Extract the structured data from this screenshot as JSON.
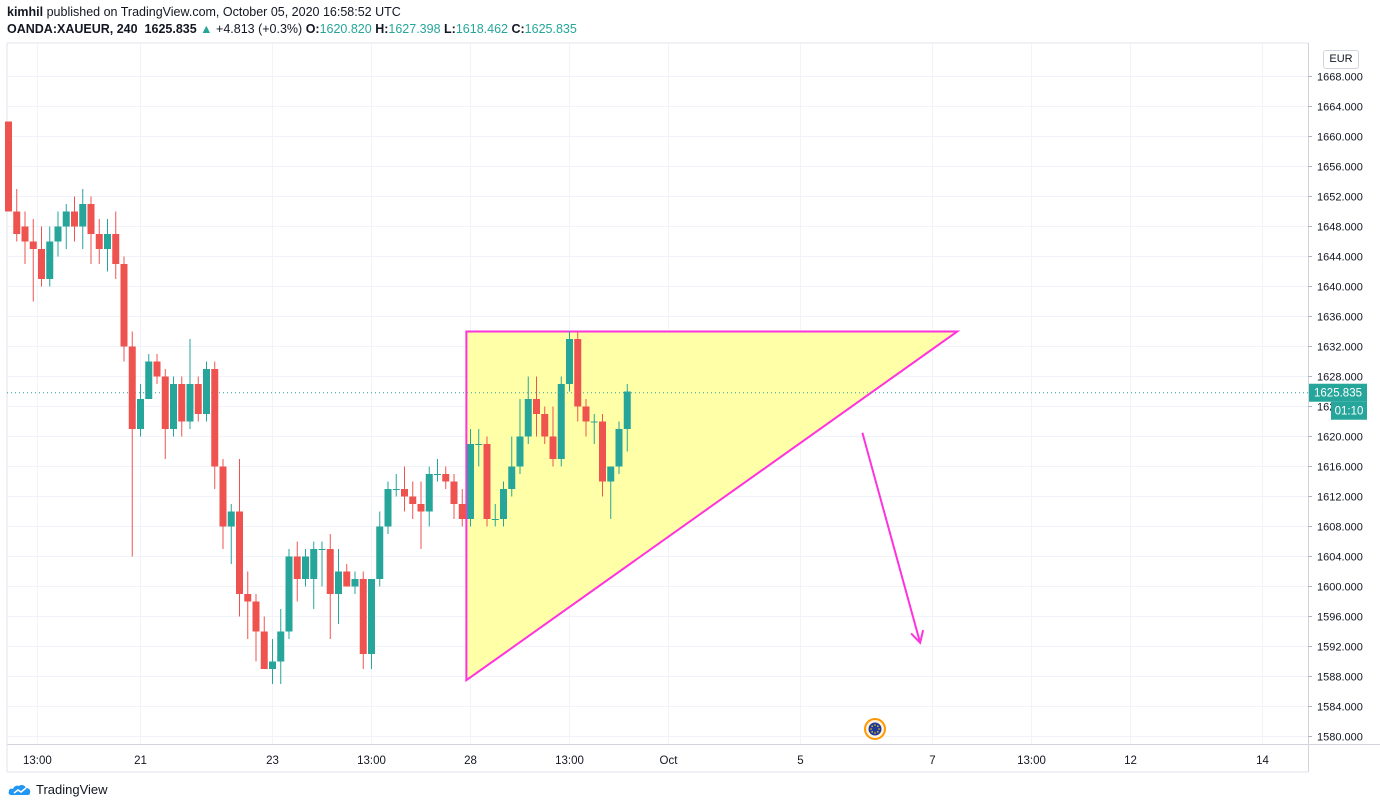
{
  "header": {
    "author": "kimhil",
    "published_text": "published on TradingView.com, October 05, 2020 16:58:52 UTC",
    "symbol": "OANDA:XAUEUR, 240",
    "last": "1625.835",
    "change": "+4.813 (+0.3%)",
    "o_label": "O:",
    "o_value": "1620.820",
    "h_label": "H:",
    "h_value": "1627.398",
    "l_label": "L:",
    "l_value": "1618.462",
    "c_label": "C:",
    "c_value": "1625.835"
  },
  "currency": "EUR",
  "price_badge": "1625.835",
  "countdown": "01:10",
  "footer_brand": "TradingView",
  "colors": {
    "up": "#26a69a",
    "down": "#ef5350",
    "pattern_fill": "#ffff99",
    "pattern_line": "#ff33dd",
    "dotted": "#26a69a"
  },
  "chart_data": {
    "type": "candlestick",
    "ylim": [
      1578,
      1672
    ],
    "y_ticks": [
      1580,
      1584,
      1588,
      1592,
      1596,
      1600,
      1604,
      1608,
      1612,
      1616,
      1620,
      1624,
      1628,
      1632,
      1636,
      1640,
      1644,
      1648,
      1652,
      1656,
      1660,
      1664,
      1668
    ],
    "x_ticks": [
      {
        "bar": 3.5,
        "label": "13:00"
      },
      {
        "bar": 16,
        "label": "21"
      },
      {
        "bar": 32,
        "label": "23"
      },
      {
        "bar": 44,
        "label": "13:00"
      },
      {
        "bar": 56,
        "label": "28"
      },
      {
        "bar": 68,
        "label": "13:00"
      },
      {
        "bar": 80,
        "label": "Oct"
      },
      {
        "bar": 96,
        "label": "5"
      },
      {
        "bar": 112,
        "label": "7"
      },
      {
        "bar": 124,
        "label": "13:00"
      },
      {
        "bar": 136,
        "label": "12"
      },
      {
        "bar": 152,
        "label": "14"
      }
    ],
    "last_price": 1625.835,
    "candles": [
      {
        "o": 1662,
        "h": 1662,
        "l": 1650,
        "c": 1650
      },
      {
        "o": 1650,
        "h": 1653,
        "l": 1646,
        "c": 1647
      },
      {
        "o": 1648,
        "h": 1650,
        "l": 1643,
        "c": 1646
      },
      {
        "o": 1646,
        "h": 1649,
        "l": 1638,
        "c": 1645
      },
      {
        "o": 1645,
        "h": 1648,
        "l": 1640,
        "c": 1641
      },
      {
        "o": 1641,
        "h": 1648,
        "l": 1640,
        "c": 1646
      },
      {
        "o": 1646,
        "h": 1650,
        "l": 1644,
        "c": 1648
      },
      {
        "o": 1648,
        "h": 1651,
        "l": 1645,
        "c": 1650
      },
      {
        "o": 1650,
        "h": 1652,
        "l": 1646,
        "c": 1648
      },
      {
        "o": 1648,
        "h": 1653,
        "l": 1645,
        "c": 1651
      },
      {
        "o": 1651,
        "h": 1652,
        "l": 1643,
        "c": 1647
      },
      {
        "o": 1647,
        "h": 1649,
        "l": 1643,
        "c": 1645
      },
      {
        "o": 1645,
        "h": 1649,
        "l": 1642,
        "c": 1647
      },
      {
        "o": 1647,
        "h": 1650,
        "l": 1641,
        "c": 1643
      },
      {
        "o": 1643,
        "h": 1644,
        "l": 1630,
        "c": 1632
      },
      {
        "o": 1632,
        "h": 1634,
        "l": 1604,
        "c": 1621
      },
      {
        "o": 1621,
        "h": 1627,
        "l": 1620,
        "c": 1625
      },
      {
        "o": 1625,
        "h": 1631,
        "l": 1625,
        "c": 1630
      },
      {
        "o": 1630,
        "h": 1631,
        "l": 1627,
        "c": 1628
      },
      {
        "o": 1628,
        "h": 1629,
        "l": 1617,
        "c": 1621
      },
      {
        "o": 1621,
        "h": 1628,
        "l": 1620,
        "c": 1627
      },
      {
        "o": 1627,
        "h": 1628,
        "l": 1620,
        "c": 1622
      },
      {
        "o": 1622,
        "h": 1633,
        "l": 1621,
        "c": 1627
      },
      {
        "o": 1627,
        "h": 1628,
        "l": 1622,
        "c": 1623
      },
      {
        "o": 1623,
        "h": 1630,
        "l": 1622,
        "c": 1629
      },
      {
        "o": 1629,
        "h": 1630,
        "l": 1613,
        "c": 1616
      },
      {
        "o": 1616,
        "h": 1617,
        "l": 1605,
        "c": 1608
      },
      {
        "o": 1608,
        "h": 1611,
        "l": 1603,
        "c": 1610
      },
      {
        "o": 1610,
        "h": 1617,
        "l": 1596,
        "c": 1599
      },
      {
        "o": 1599,
        "h": 1602,
        "l": 1593,
        "c": 1598
      },
      {
        "o": 1598,
        "h": 1599,
        "l": 1590,
        "c": 1594
      },
      {
        "o": 1594,
        "h": 1596,
        "l": 1589,
        "c": 1589
      },
      {
        "o": 1589,
        "h": 1593,
        "l": 1587,
        "c": 1590
      },
      {
        "o": 1590,
        "h": 1597,
        "l": 1587,
        "c": 1594
      },
      {
        "o": 1594,
        "h": 1605,
        "l": 1593,
        "c": 1604
      },
      {
        "o": 1604,
        "h": 1606,
        "l": 1598,
        "c": 1601
      },
      {
        "o": 1601,
        "h": 1605,
        "l": 1600,
        "c": 1604
      },
      {
        "o": 1601,
        "h": 1606,
        "l": 1597,
        "c": 1605
      },
      {
        "o": 1605,
        "h": 1606,
        "l": 1600,
        "c": 1605
      },
      {
        "o": 1605,
        "h": 1607,
        "l": 1593,
        "c": 1599
      },
      {
        "o": 1599,
        "h": 1605,
        "l": 1595,
        "c": 1602
      },
      {
        "o": 1602,
        "h": 1603,
        "l": 1600,
        "c": 1600
      },
      {
        "o": 1600,
        "h": 1602,
        "l": 1599,
        "c": 1601
      },
      {
        "o": 1601,
        "h": 1602,
        "l": 1589,
        "c": 1591
      },
      {
        "o": 1591,
        "h": 1601,
        "l": 1589,
        "c": 1601
      },
      {
        "o": 1601,
        "h": 1610,
        "l": 1600,
        "c": 1608
      },
      {
        "o": 1608,
        "h": 1614,
        "l": 1607,
        "c": 1613
      },
      {
        "o": 1613,
        "h": 1615,
        "l": 1612,
        "c": 1613
      },
      {
        "o": 1613,
        "h": 1616,
        "l": 1610,
        "c": 1612
      },
      {
        "o": 1612,
        "h": 1614,
        "l": 1609,
        "c": 1611
      },
      {
        "o": 1611,
        "h": 1614,
        "l": 1605,
        "c": 1610
      },
      {
        "o": 1610,
        "h": 1616,
        "l": 1608,
        "c": 1615
      },
      {
        "o": 1615,
        "h": 1617,
        "l": 1614,
        "c": 1615
      },
      {
        "o": 1615,
        "h": 1616,
        "l": 1613,
        "c": 1614
      },
      {
        "o": 1614,
        "h": 1615,
        "l": 1609,
        "c": 1611
      },
      {
        "o": 1611,
        "h": 1613,
        "l": 1608,
        "c": 1609
      },
      {
        "o": 1609,
        "h": 1621,
        "l": 1608,
        "c": 1619
      },
      {
        "o": 1619,
        "h": 1621,
        "l": 1616,
        "c": 1619
      },
      {
        "o": 1619,
        "h": 1620,
        "l": 1608,
        "c": 1609
      },
      {
        "o": 1609,
        "h": 1611,
        "l": 1608,
        "c": 1609
      },
      {
        "o": 1609,
        "h": 1614,
        "l": 1608,
        "c": 1613
      },
      {
        "o": 1613,
        "h": 1620,
        "l": 1612,
        "c": 1616
      },
      {
        "o": 1616,
        "h": 1625,
        "l": 1615,
        "c": 1620
      },
      {
        "o": 1620,
        "h": 1628,
        "l": 1619,
        "c": 1625
      },
      {
        "o": 1625,
        "h": 1628,
        "l": 1620,
        "c": 1623
      },
      {
        "o": 1623,
        "h": 1624,
        "l": 1619,
        "c": 1620
      },
      {
        "o": 1620,
        "h": 1624,
        "l": 1616,
        "c": 1617
      },
      {
        "o": 1617,
        "h": 1628,
        "l": 1616,
        "c": 1627
      },
      {
        "o": 1627,
        "h": 1634,
        "l": 1626,
        "c": 1633
      },
      {
        "o": 1633,
        "h": 1634,
        "l": 1622,
        "c": 1624
      },
      {
        "o": 1624,
        "h": 1625,
        "l": 1620,
        "c": 1622
      },
      {
        "o": 1622,
        "h": 1623,
        "l": 1619,
        "c": 1622
      },
      {
        "o": 1622,
        "h": 1623,
        "l": 1612,
        "c": 1614
      },
      {
        "o": 1614,
        "h": 1616,
        "l": 1609,
        "c": 1616
      },
      {
        "o": 1616,
        "h": 1622,
        "l": 1615,
        "c": 1621
      },
      {
        "o": 1621,
        "h": 1627,
        "l": 1618,
        "c": 1626
      }
    ],
    "annotations": [
      {
        "type": "triangle",
        "points": [
          {
            "bar": 55.5,
            "price": 1634
          },
          {
            "bar": 115,
            "price": 1634
          },
          {
            "bar": 55.5,
            "price": 1587.5
          }
        ]
      },
      {
        "type": "arrow",
        "from": {
          "bar": 103.5,
          "price": 1620.5
        },
        "to": {
          "bar": 110.5,
          "price": 1592.5
        }
      }
    ]
  }
}
